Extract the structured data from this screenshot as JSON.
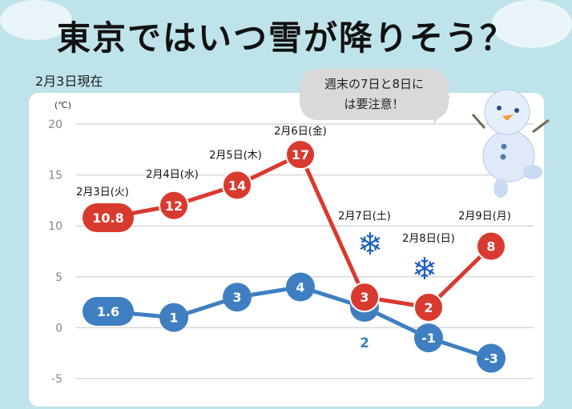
{
  "title": "東京ではいつ雪が降りそう？",
  "as_of": "2月3日現在",
  "callout": {
    "line1": "週末の7日と8日に",
    "line2": "は要注意！"
  },
  "colors": {
    "max": "#d93a2f",
    "min": "#3f7fc1",
    "snow": "#1f5fbf",
    "background": "#bfe3ea"
  },
  "chart_data": {
    "type": "line",
    "ylabel": "(℃)",
    "ylim": [
      -5,
      20
    ],
    "yticks": [
      "20",
      "15",
      "10",
      "5",
      "0",
      "-5"
    ],
    "grid": true,
    "categories": [
      "2月3日(火)",
      "2月4日(水)",
      "2月5日(木)",
      "2月6日(金)",
      "2月7日(土)",
      "2月8日(日)",
      "2月9日(月)"
    ],
    "series": [
      {
        "values": [
          10.8,
          12,
          14,
          17,
          3,
          2,
          8
        ],
        "labels": [
          "10.8",
          "12",
          "14",
          "17",
          "3",
          "2",
          "8"
        ]
      },
      {
        "values": [
          1.6,
          1,
          3,
          4,
          2,
          -1,
          -3
        ],
        "labels": [
          "1.6",
          "1",
          "3",
          "4",
          "2",
          "-1",
          "-3"
        ]
      }
    ],
    "snow_days": [
      "2月7日(土)",
      "2月8日(日)"
    ]
  }
}
